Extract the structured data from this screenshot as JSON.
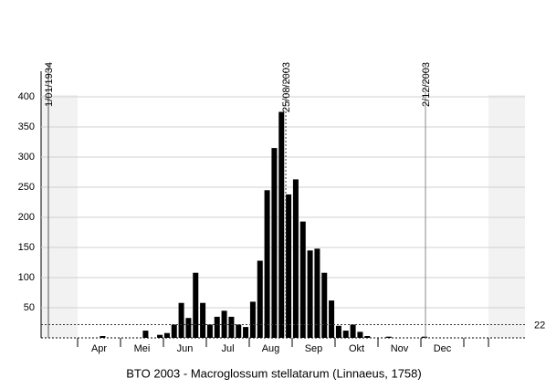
{
  "chart_data": {
    "type": "bar",
    "title": "BTO 2003 - Macroglossum stellatarum (Linnaeus, 1758)",
    "categories": [
      null,
      null,
      null,
      null,
      null,
      null,
      null,
      null,
      null,
      null,
      null,
      null,
      null,
      null,
      null,
      null,
      null,
      null,
      null,
      null,
      null,
      null,
      null,
      null,
      null,
      null,
      null,
      null,
      null,
      null,
      null,
      null,
      null,
      null,
      null,
      null,
      null,
      null,
      null,
      null,
      null,
      null,
      null,
      null,
      null,
      null,
      null,
      null,
      null,
      null,
      null,
      null,
      null,
      null,
      null,
      null,
      null
    ],
    "values": [
      0,
      0,
      0,
      3,
      0,
      0,
      0,
      0,
      0,
      12,
      0,
      5,
      8,
      22,
      58,
      33,
      108,
      58,
      22,
      35,
      45,
      35,
      22,
      18,
      60,
      128,
      245,
      315,
      375,
      238,
      263,
      193,
      145,
      148,
      108,
      62,
      20,
      12,
      22,
      10,
      3,
      0,
      0,
      2,
      0,
      0,
      0,
      0,
      2,
      0,
      0,
      0,
      0,
      0,
      0,
      0,
      0
    ],
    "color": "#000000",
    "months": [
      "Apr",
      "Mei",
      "Jun",
      "Jul",
      "Aug",
      "Sep",
      "Okt",
      "Nov",
      "Dec"
    ],
    "ylim": [
      0,
      400
    ],
    "yticks": [
      50,
      100,
      150,
      200,
      250,
      300,
      350,
      400
    ],
    "grid": true,
    "markers": [
      "1/01/1934",
      "25/08/2003",
      "2/12/2003"
    ],
    "threshold": 22
  }
}
